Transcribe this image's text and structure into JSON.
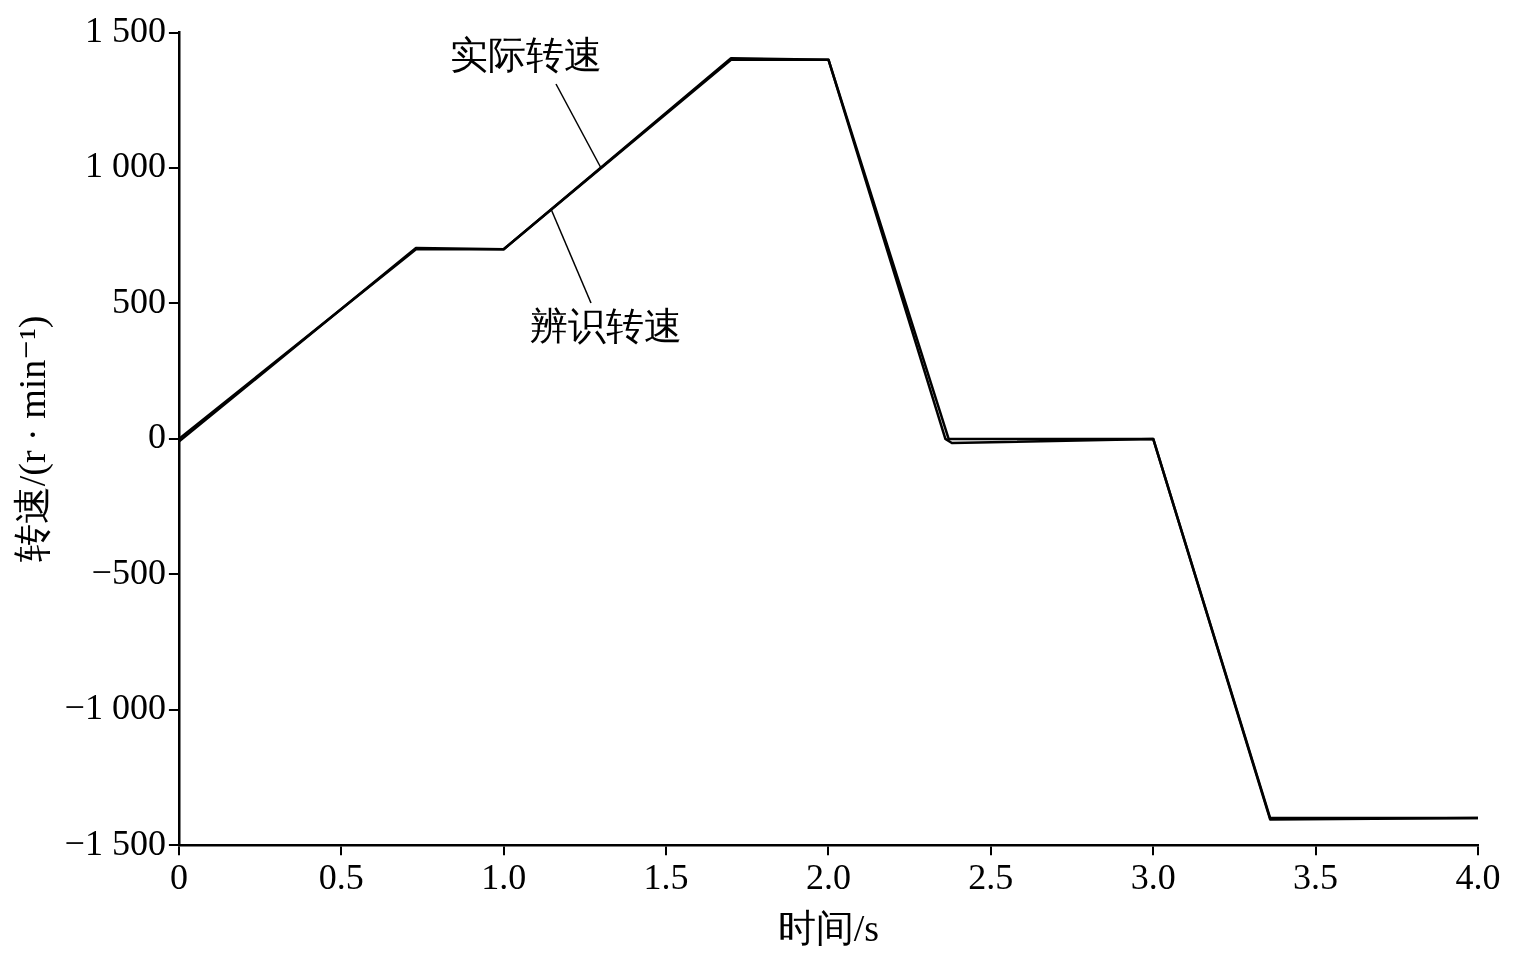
{
  "chart_data": {
    "type": "line",
    "xlabel": "时间/s",
    "ylabel": "转速/(r · min⁻¹)",
    "xlim": [
      0,
      4
    ],
    "xticks": [
      0,
      0.5,
      {
        "value": 1,
        "label": "1.0"
      },
      1.5,
      {
        "value": 2,
        "label": "2.0"
      },
      2.5,
      {
        "value": 3,
        "label": "3.0"
      },
      3.5,
      {
        "value": 4,
        "label": "4.0"
      }
    ],
    "ylim": [
      -1500,
      1500
    ],
    "yticks": [
      {
        "value": -1500,
        "label": "−1 500"
      },
      {
        "value": -1000,
        "label": "−1 000"
      },
      {
        "value": -500,
        "label": "−500"
      },
      0,
      500,
      {
        "value": 1000,
        "label": "1 000"
      },
      {
        "value": 1500,
        "label": "1 500"
      }
    ],
    "grid": false,
    "legend": false,
    "marker": "none",
    "line_style": "solid",
    "series": [
      {
        "name": "实际转速",
        "color": "#000000",
        "x": [
          0,
          0.73,
          1.0,
          1.7,
          2.0,
          2.37,
          3.0,
          3.36,
          4.0
        ],
        "values": [
          0,
          700,
          700,
          1400,
          1400,
          0,
          0,
          -1400,
          -1400
        ]
      },
      {
        "name": "辨识转速",
        "color": "#000000",
        "x": [
          0,
          0.73,
          1.0,
          1.7,
          2.0,
          2.36,
          2.38,
          3.0,
          3.36,
          4.0
        ],
        "values": [
          -10,
          705,
          700,
          1405,
          1400,
          0,
          -15,
          0,
          -1405,
          -1400
        ]
      }
    ]
  }
}
